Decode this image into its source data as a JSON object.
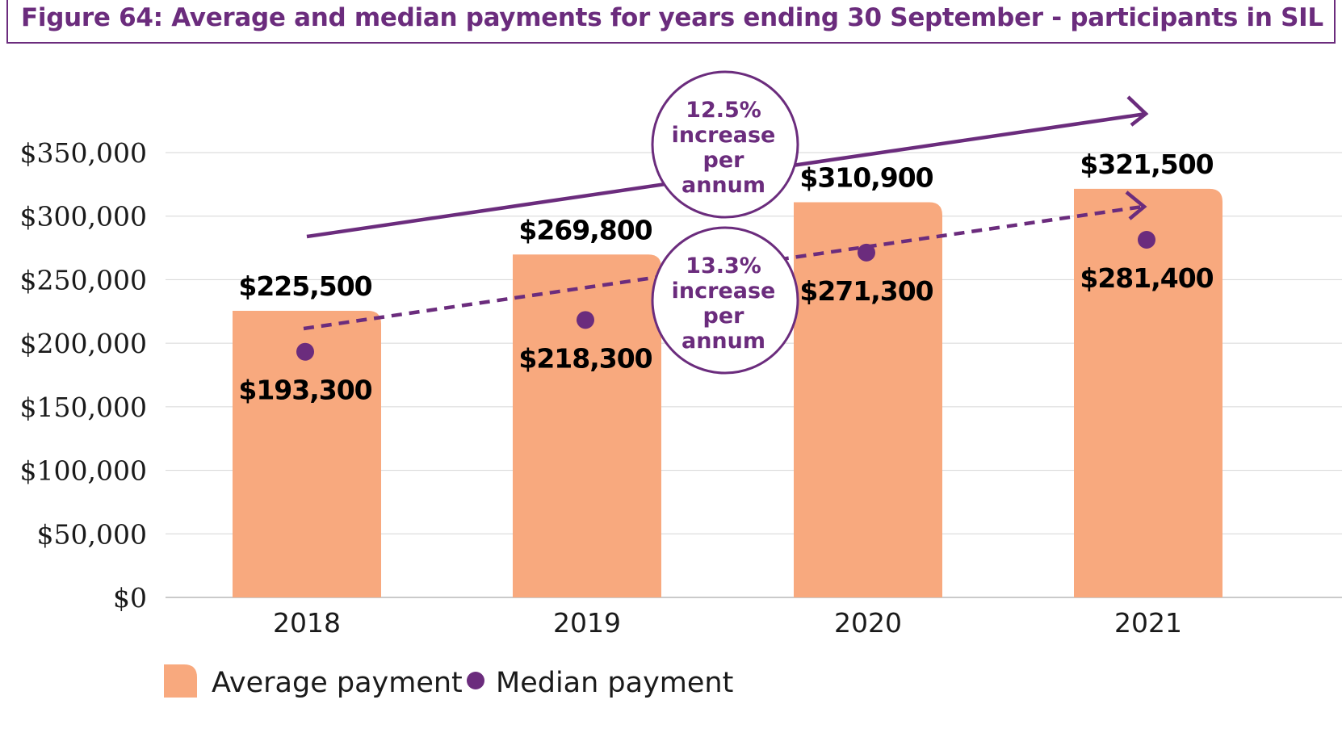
{
  "title": "Figure 64: Average and median payments for years ending 30 September - participants in SIL",
  "chart_data": {
    "type": "bar",
    "categories": [
      "2018",
      "2019",
      "2020",
      "2021"
    ],
    "ylim": [
      0,
      350000
    ],
    "yticks": [
      0,
      50000,
      100000,
      150000,
      200000,
      250000,
      300000,
      350000
    ],
    "ytick_labels": [
      "$0",
      "$50,000",
      "$100,000",
      "$150,000",
      "$200,000",
      "$250,000",
      "$300,000",
      "$350,000"
    ],
    "grid": true,
    "legend_position": "bottom-left",
    "series": [
      {
        "name": "Average payment",
        "type": "bar",
        "color": "#f8a97e",
        "values": [
          225500,
          269800,
          310900,
          321500
        ],
        "labels": [
          "$225,500",
          "$269,800",
          "$310,900",
          "$321,500"
        ]
      },
      {
        "name": "Median payment",
        "type": "scatter",
        "color": "#6b2c7d",
        "values": [
          193300,
          218300,
          271300,
          281400
        ],
        "labels": [
          "$193,300",
          "$218,300",
          "$271,300",
          "$281,400"
        ]
      }
    ],
    "annotations": [
      {
        "lines": [
          "12.5%",
          "increase",
          "per",
          "annum"
        ],
        "trend_of": "Average payment"
      },
      {
        "lines": [
          "13.3%",
          "increase",
          "per",
          "annum"
        ],
        "trend_of": "Median payment"
      }
    ]
  }
}
